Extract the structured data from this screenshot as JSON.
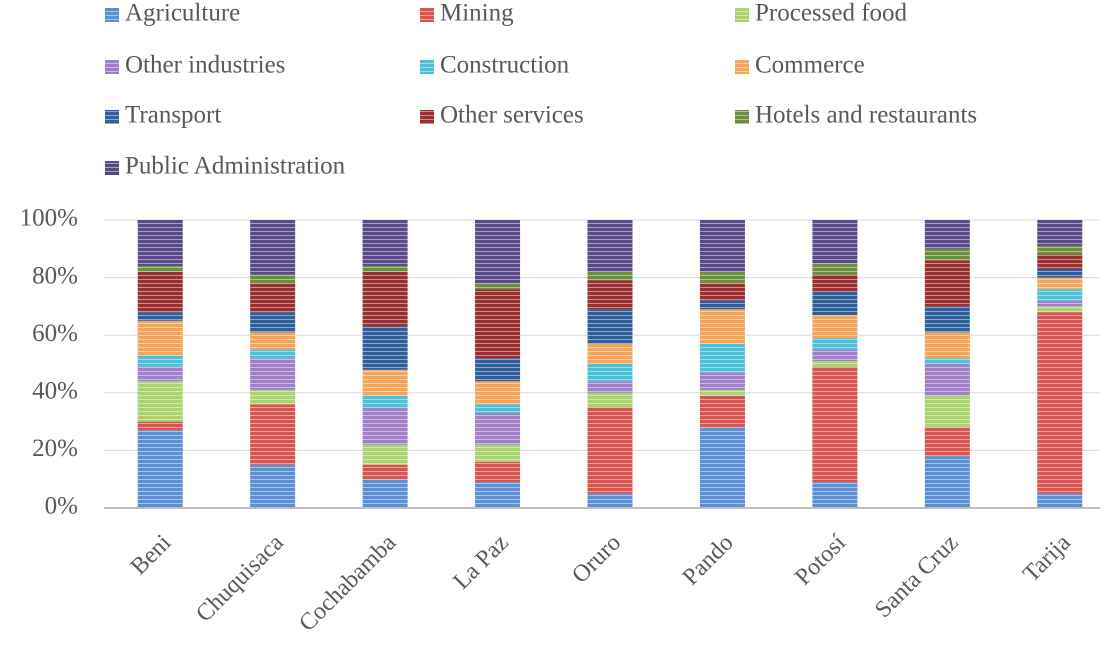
{
  "chart_data": {
    "type": "stacked_bar",
    "categories": [
      "Beni",
      "Chuquisaca",
      "Cochabamba",
      "La Paz",
      "Oruro",
      "Pando",
      "Potosí",
      "Santa Cruz",
      "Tarija"
    ],
    "series": [
      {
        "name": "Agriculture",
        "color": "#5b8fd6",
        "values": [
          27,
          15,
          10,
          9,
          5,
          28,
          9,
          18,
          5
        ]
      },
      {
        "name": "Mining",
        "color": "#d9534f",
        "values": [
          3,
          21,
          5,
          7,
          30,
          11,
          40,
          10,
          63
        ]
      },
      {
        "name": "Processed food",
        "color": "#a9d46b",
        "values": [
          14,
          5,
          7,
          6,
          5,
          2,
          2,
          11,
          2
        ]
      },
      {
        "name": "Other industries",
        "color": "#a17fc9",
        "values": [
          5,
          11,
          13,
          11,
          4,
          6,
          4,
          11,
          2
        ]
      },
      {
        "name": "Construction",
        "color": "#4bc0d9",
        "values": [
          4,
          3,
          4,
          3,
          6,
          10,
          4,
          2,
          4
        ]
      },
      {
        "name": "Commerce",
        "color": "#f5a55a",
        "values": [
          12,
          6,
          9,
          8,
          7,
          12,
          8,
          9,
          4
        ]
      },
      {
        "name": "Transport",
        "color": "#2f5f9a",
        "values": [
          3,
          7,
          15,
          8,
          12,
          3,
          8,
          9,
          3
        ]
      },
      {
        "name": "Other services",
        "color": "#9b2f2f",
        "values": [
          14,
          10,
          19,
          24,
          10,
          6,
          6,
          16,
          5
        ]
      },
      {
        "name": "Hotels and restaurants",
        "color": "#6b8e3a",
        "values": [
          2,
          3,
          2,
          2,
          3,
          4,
          4,
          4,
          3
        ]
      },
      {
        "name": "Public Administration",
        "color": "#5b4a8a",
        "values": [
          16,
          19,
          16,
          22,
          18,
          18,
          15,
          10,
          9
        ]
      }
    ],
    "ylim": [
      0,
      100
    ],
    "yticks": [
      {
        "value": 0,
        "label": "0%"
      },
      {
        "value": 20,
        "label": "20%"
      },
      {
        "value": 40,
        "label": "40%"
      },
      {
        "value": 60,
        "label": "60%"
      },
      {
        "value": 80,
        "label": "80%"
      },
      {
        "value": 100,
        "label": "100%"
      }
    ],
    "grid": true
  }
}
